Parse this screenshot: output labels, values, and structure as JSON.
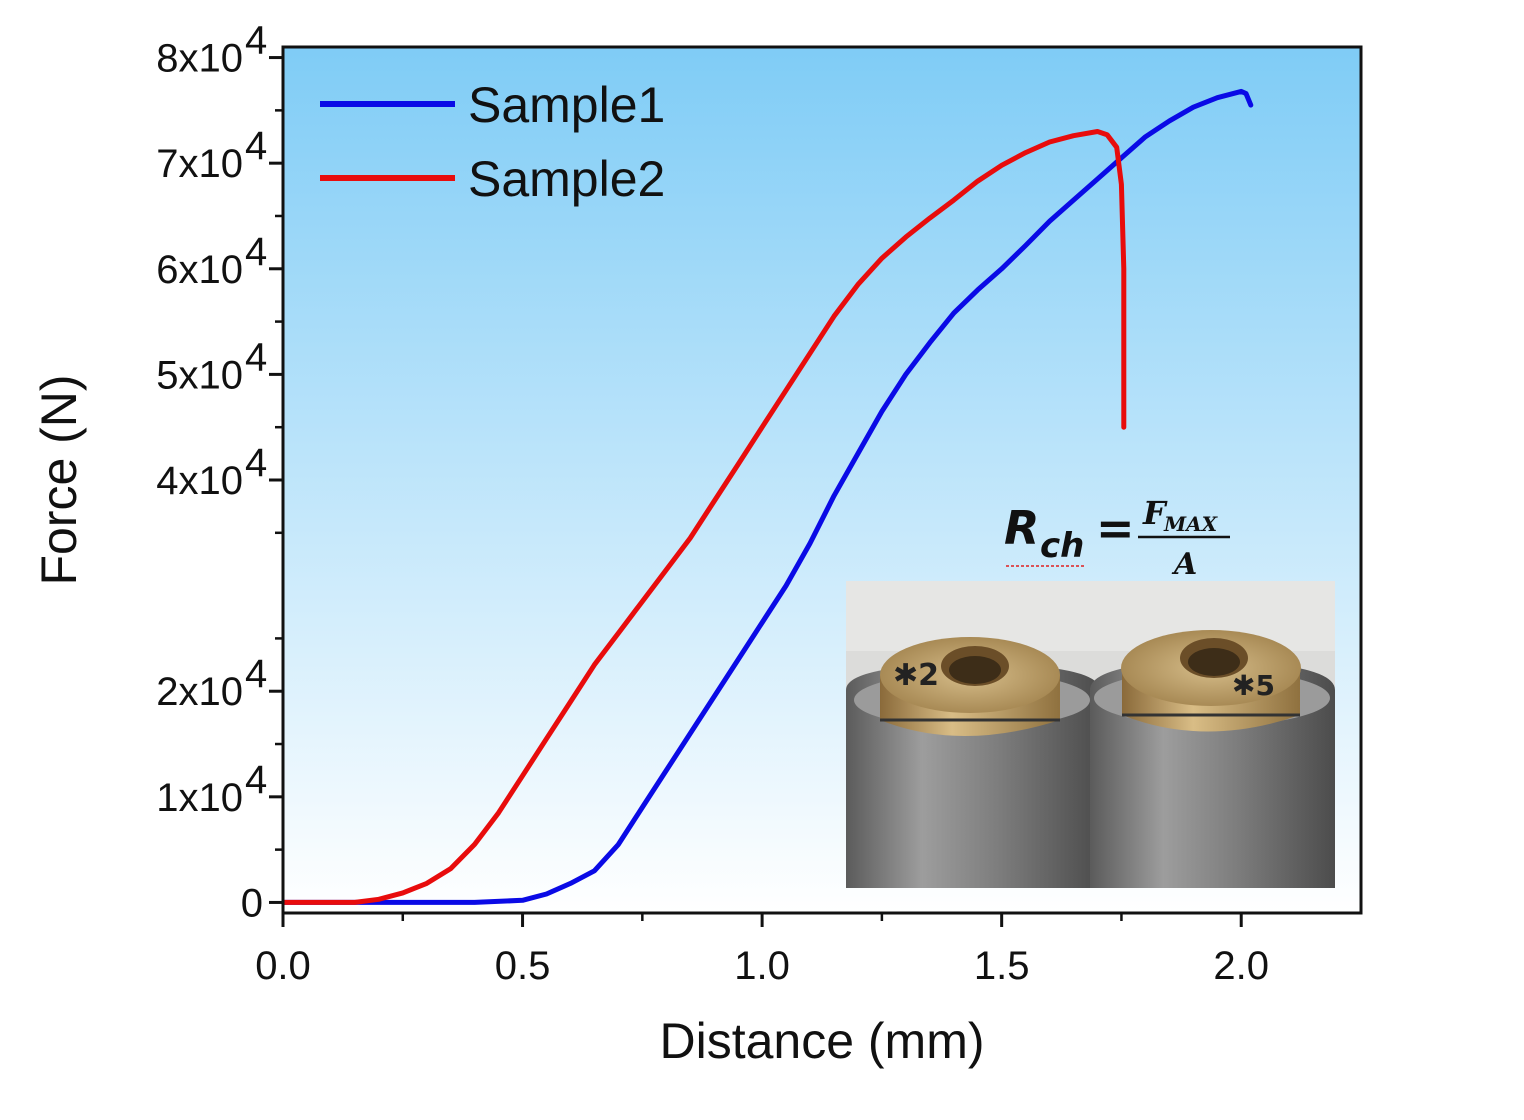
{
  "chart_data": {
    "type": "line",
    "title": "",
    "xlabel": "Distance (mm)",
    "ylabel": "Force (N)",
    "xlim": [
      0,
      2.25
    ],
    "ylim": [
      -1000,
      81000
    ],
    "x_ticks": [
      {
        "value": 0.0,
        "label": "0.0"
      },
      {
        "value": 0.5,
        "label": "0.5"
      },
      {
        "value": 1.0,
        "label": "1.0"
      },
      {
        "value": 1.5,
        "label": "1.5"
      },
      {
        "value": 2.0,
        "label": "2.0"
      }
    ],
    "y_ticks": [
      {
        "value": 0,
        "mantissa": "0",
        "exp": ""
      },
      {
        "value": 10000,
        "mantissa": "1x10",
        "exp": "4"
      },
      {
        "value": 20000,
        "mantissa": "2x10",
        "exp": "4"
      },
      {
        "value": 40000,
        "mantissa": "4x10",
        "exp": "4"
      },
      {
        "value": 50000,
        "mantissa": "5x10",
        "exp": "4"
      },
      {
        "value": 60000,
        "mantissa": "6x10",
        "exp": "4"
      },
      {
        "value": 70000,
        "mantissa": "7x10",
        "exp": "4"
      },
      {
        "value": 80000,
        "mantissa": "8x10",
        "exp": "4"
      }
    ],
    "legend_position": "top-left",
    "grid": false,
    "background_gradient": [
      "#7fccf6",
      "#ffffff"
    ],
    "series": [
      {
        "name": "Sample1",
        "color": "#0a0ae6",
        "points": [
          [
            0.0,
            0
          ],
          [
            0.2,
            0
          ],
          [
            0.4,
            0
          ],
          [
            0.5,
            200
          ],
          [
            0.55,
            800
          ],
          [
            0.6,
            1800
          ],
          [
            0.65,
            3000
          ],
          [
            0.7,
            5500
          ],
          [
            0.75,
            9000
          ],
          [
            0.8,
            12500
          ],
          [
            0.85,
            16000
          ],
          [
            0.9,
            19500
          ],
          [
            0.95,
            23000
          ],
          [
            1.0,
            26500
          ],
          [
            1.05,
            30000
          ],
          [
            1.1,
            34000
          ],
          [
            1.15,
            38500
          ],
          [
            1.2,
            42500
          ],
          [
            1.25,
            46500
          ],
          [
            1.3,
            50000
          ],
          [
            1.35,
            53000
          ],
          [
            1.4,
            55800
          ],
          [
            1.45,
            58000
          ],
          [
            1.5,
            60000
          ],
          [
            1.55,
            62200
          ],
          [
            1.6,
            64500
          ],
          [
            1.65,
            66500
          ],
          [
            1.7,
            68500
          ],
          [
            1.75,
            70500
          ],
          [
            1.8,
            72500
          ],
          [
            1.85,
            74000
          ],
          [
            1.9,
            75300
          ],
          [
            1.95,
            76200
          ],
          [
            2.0,
            76800
          ],
          [
            2.01,
            76600
          ],
          [
            2.02,
            75500
          ]
        ]
      },
      {
        "name": "Sample2",
        "color": "#e80c0c",
        "points": [
          [
            0.0,
            0
          ],
          [
            0.15,
            0
          ],
          [
            0.2,
            300
          ],
          [
            0.25,
            900
          ],
          [
            0.3,
            1800
          ],
          [
            0.35,
            3200
          ],
          [
            0.4,
            5500
          ],
          [
            0.45,
            8500
          ],
          [
            0.5,
            12000
          ],
          [
            0.55,
            15500
          ],
          [
            0.6,
            19000
          ],
          [
            0.65,
            22500
          ],
          [
            0.7,
            25500
          ],
          [
            0.75,
            28500
          ],
          [
            0.8,
            31500
          ],
          [
            0.85,
            34500
          ],
          [
            0.9,
            38000
          ],
          [
            0.95,
            41500
          ],
          [
            1.0,
            45000
          ],
          [
            1.05,
            48500
          ],
          [
            1.1,
            52000
          ],
          [
            1.15,
            55500
          ],
          [
            1.2,
            58500
          ],
          [
            1.25,
            61000
          ],
          [
            1.3,
            63000
          ],
          [
            1.35,
            64800
          ],
          [
            1.4,
            66500
          ],
          [
            1.45,
            68300
          ],
          [
            1.5,
            69800
          ],
          [
            1.55,
            71000
          ],
          [
            1.6,
            72000
          ],
          [
            1.65,
            72600
          ],
          [
            1.7,
            73000
          ],
          [
            1.72,
            72700
          ],
          [
            1.74,
            71500
          ],
          [
            1.75,
            68000
          ],
          [
            1.755,
            60000
          ],
          [
            1.755,
            52000
          ],
          [
            1.755,
            45000
          ]
        ]
      }
    ],
    "annotations": {
      "formula": {
        "lhs_main": "R",
        "lhs_sub": "ch",
        "equals": "=",
        "num_main": "F",
        "num_sub": "MAX",
        "den": "A"
      }
    },
    "inset_photo": {
      "description_icon": "photo-inset",
      "colors": {
        "bronze": "#b89a66",
        "steel": "#8a8a8a",
        "bg": "#dcdcda"
      }
    }
  }
}
